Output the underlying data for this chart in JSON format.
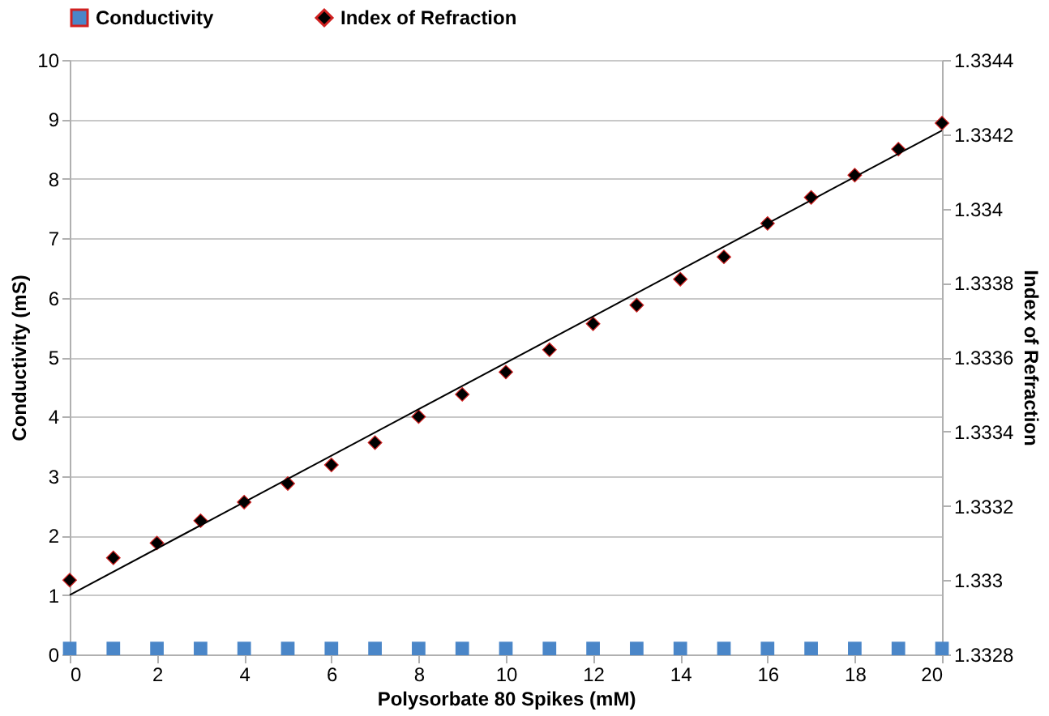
{
  "chart_data": {
    "type": "scatter",
    "xlabel": "Polysorbate 80 Spikes (mM)",
    "ylabel": "Conductivity (mS)",
    "y2label": "Index of Refraction",
    "x": [
      0,
      1,
      2,
      3,
      4,
      5,
      6,
      7,
      8,
      9,
      10,
      11,
      12,
      13,
      14,
      15,
      16,
      17,
      18,
      19,
      20
    ],
    "series": [
      {
        "name": "Conductivity",
        "color": "#4a86c8",
        "marker": "square",
        "values": [
          0.1,
          0.1,
          0.1,
          0.1,
          0.1,
          0.1,
          0.1,
          0.1,
          0.1,
          0.1,
          0.1,
          0.1,
          0.1,
          0.1,
          0.1,
          0.1,
          0.1,
          0.1,
          0.1,
          0.1,
          0.1
        ]
      },
      {
        "name": "Index of Refraction",
        "color": "#000000",
        "marker": "diamond",
        "axis": "y2",
        "values": [
          1.333,
          1.33306,
          1.3331,
          1.33316,
          1.33321,
          1.33326,
          1.33331,
          1.33337,
          1.33344,
          1.3335,
          1.33356,
          1.33362,
          1.33369,
          1.33374,
          1.33381,
          1.33387,
          1.33396,
          1.33403,
          1.33409,
          1.33416,
          1.33423
        ]
      },
      {
        "type": "line",
        "color": "#000000",
        "axis": "y2",
        "x": [
          0,
          20
        ],
        "values": [
          1.33296,
          1.33421
        ]
      }
    ],
    "xlim": [
      0,
      20
    ],
    "xticks": [
      0,
      2,
      4,
      6,
      8,
      10,
      12,
      14,
      16,
      18,
      20
    ],
    "ylim": [
      0,
      10
    ],
    "yticks": [
      0,
      1,
      2,
      3,
      4,
      5,
      6,
      7,
      8,
      9,
      10
    ],
    "y2lim": [
      1.3328,
      1.3344
    ],
    "y2ticks": [
      1.3328,
      1.333,
      1.3332,
      1.3334,
      1.3336,
      1.3338,
      1.334,
      1.3342,
      1.3344
    ],
    "grid": "y",
    "legend": "top"
  }
}
